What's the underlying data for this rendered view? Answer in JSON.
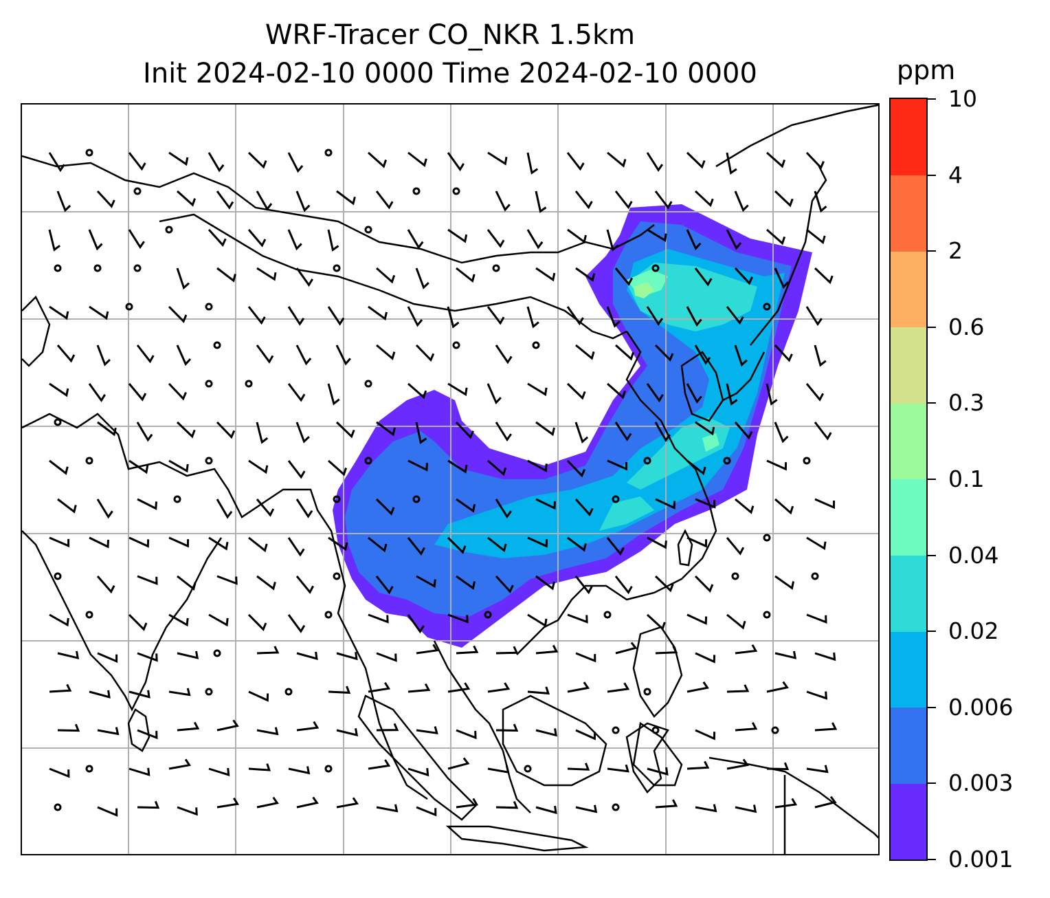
{
  "title": {
    "line1": "WRF-Tracer CO_NKR 1.5km",
    "line2": "Init 2024-02-10 0000 Time 2024-02-10 0000"
  },
  "colorbar": {
    "unit": "ppm",
    "levels": [
      "0.001",
      "0.003",
      "0.006",
      "0.02",
      "0.04",
      "0.1",
      "0.3",
      "0.6",
      "2",
      "4",
      "10"
    ],
    "colors": [
      "#6a2bff",
      "#3373f0",
      "#05b3ec",
      "#2fdbd7",
      "#6dfbbf",
      "#9bf99a",
      "#d2e18a",
      "#feb062",
      "#fd6e3b",
      "#fe2a16"
    ]
  },
  "map": {
    "gridlines": true,
    "gridline_color": "#b0b0b0",
    "coastline_color": "#000000",
    "wind_barbs": true
  }
}
